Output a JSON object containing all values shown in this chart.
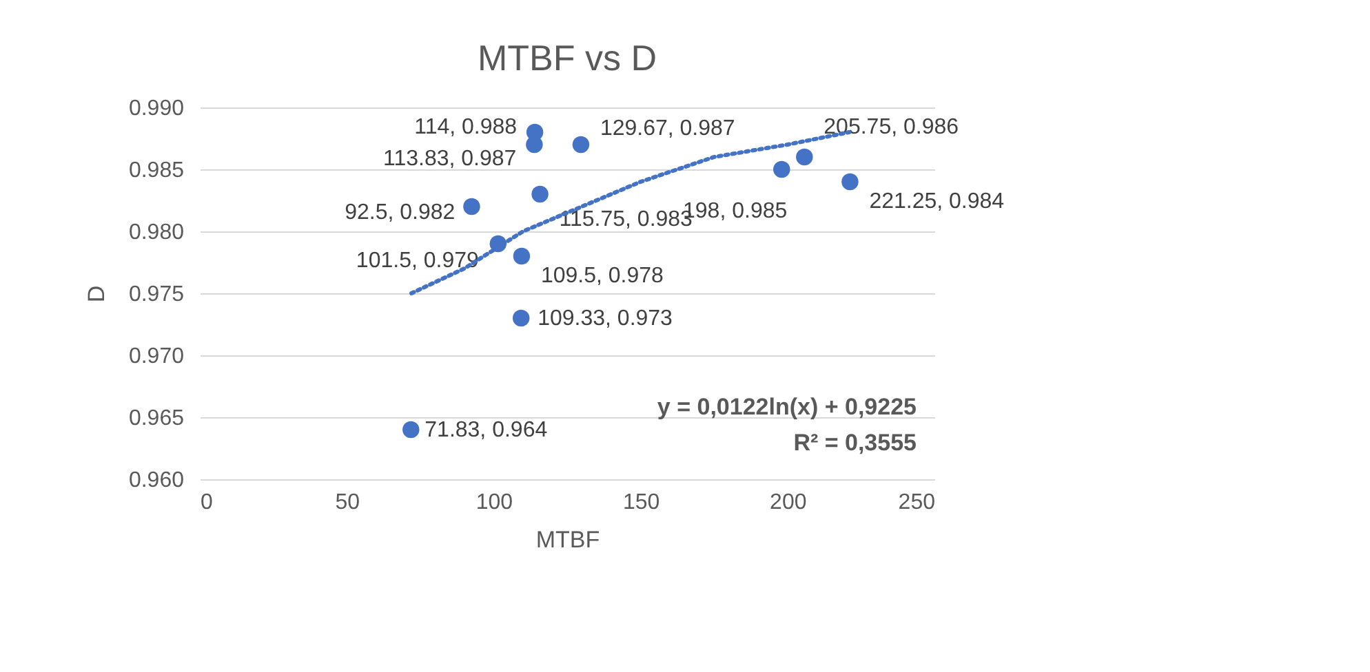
{
  "chart_data": {
    "type": "scatter",
    "title": "MTBF vs D",
    "xlabel": "MTBF",
    "ylabel": "D",
    "x": [
      71.83,
      92.5,
      101.5,
      109.33,
      109.5,
      113.83,
      114,
      115.75,
      129.67,
      198,
      205.75,
      221.25
    ],
    "series": [
      {
        "color": "#4472c4",
        "values": [
          0.964,
          0.982,
          0.979,
          0.973,
          0.978,
          0.987,
          0.988,
          0.983,
          0.987,
          0.985,
          0.986,
          0.984
        ],
        "value_labels": [
          "71.83, 0.964",
          "92.5, 0.982",
          "101.5, 0.979",
          "109.33, 0.973",
          "109.5, 0.978",
          "113.83, 0.987",
          "114, 0.988",
          "115.75, 0.983",
          "129.67, 0.987",
          "198, 0.985",
          "205.75, 0.986",
          "221.25, 0.984"
        ]
      },
      {
        "type": "line",
        "line_style": "dotted",
        "marker": "none",
        "color": "#4472c4",
        "x": [
          72,
          90,
          110,
          130,
          150,
          175,
          200,
          221
        ],
        "values": [
          0.975,
          0.977,
          0.98,
          0.982,
          0.984,
          0.986,
          0.987,
          0.988
        ]
      }
    ],
    "marker": "circle",
    "xlim": [
      0,
      250
    ],
    "xticks": [
      0,
      50,
      100,
      150,
      200,
      250
    ],
    "ylim": [
      0.96,
      0.99
    ],
    "yticks": [
      {
        "value": 0.96,
        "label": "0.960"
      },
      {
        "value": 0.965,
        "label": "0.965"
      },
      {
        "value": 0.97,
        "label": "0.970"
      },
      {
        "value": 0.975,
        "label": "0.975"
      },
      {
        "value": 0.98,
        "label": "0.980"
      },
      {
        "value": 0.985,
        "label": "0.985"
      },
      {
        "value": 0.99,
        "label": "0.990"
      }
    ],
    "grid": "y",
    "annotations": [
      "y = 0,0122ln(x) + 0,9225",
      "R² = 0,3555"
    ]
  }
}
